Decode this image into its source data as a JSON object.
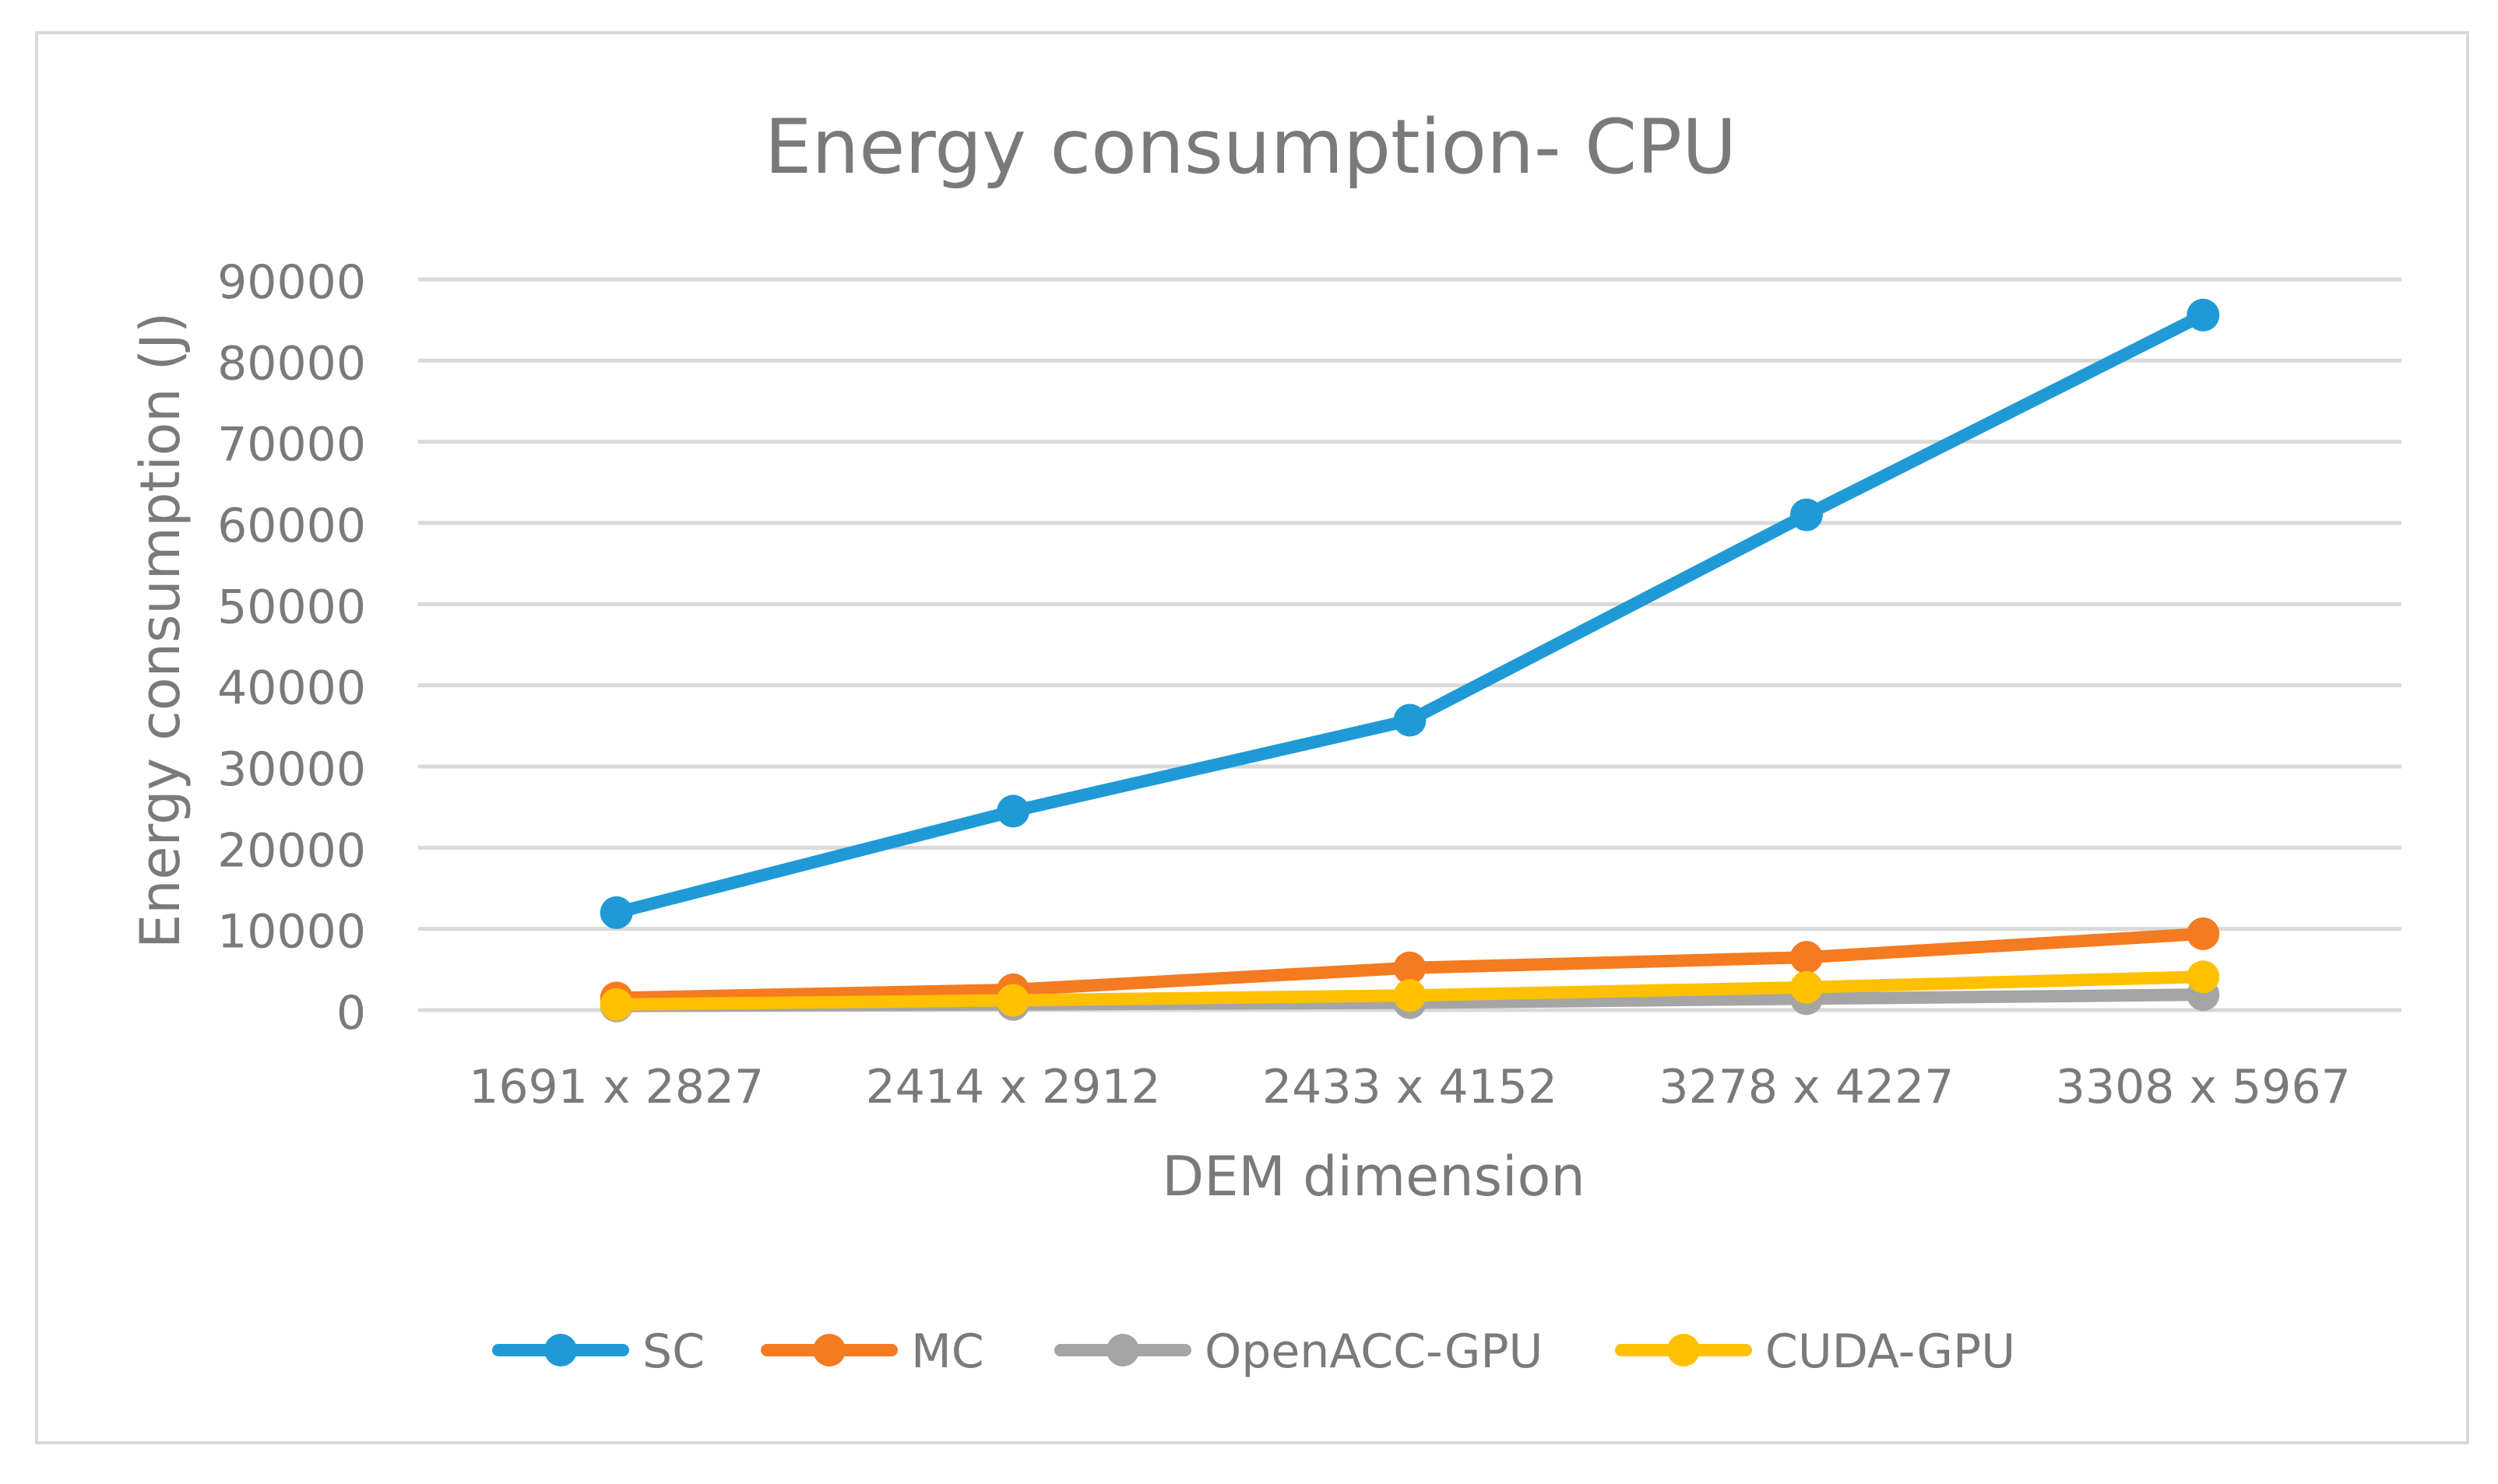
{
  "chart_data": {
    "type": "line",
    "title": "Energy consumption- CPU",
    "xlabel": "DEM dimension",
    "ylabel": "Energy consumption (J)",
    "ylim": [
      0,
      90000
    ],
    "yticks": [
      "0",
      "10000",
      "20000",
      "30000",
      "40000",
      "50000",
      "60000",
      "70000",
      "80000",
      "90000"
    ],
    "yticks_values": [
      0,
      10000,
      20000,
      30000,
      40000,
      50000,
      60000,
      70000,
      80000,
      90000
    ],
    "categories": [
      "1691 x 2827",
      "2414 x 2912",
      "2433 x 4152",
      "3278 x 4227",
      "3308 x 5967"
    ],
    "grid": true,
    "legend_position": "bottom",
    "series": [
      {
        "name": "SC",
        "color": "#1f9ad6",
        "values": [
          12000,
          24500,
          35700,
          61000,
          85600
        ]
      },
      {
        "name": "MC",
        "color": "#f47b20",
        "values": [
          1500,
          2500,
          5200,
          6500,
          9400
        ]
      },
      {
        "name": "OpenACC-GPU",
        "color": "#a5a5a5",
        "values": [
          500,
          700,
          900,
          1400,
          1900
        ]
      },
      {
        "name": "CUDA-GPU",
        "color": "#ffc000",
        "values": [
          700,
          1200,
          1800,
          2800,
          4100
        ]
      }
    ]
  }
}
